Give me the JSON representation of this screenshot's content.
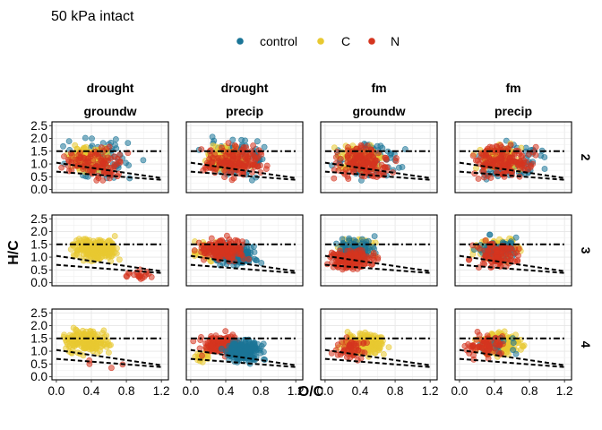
{
  "chart_data": {
    "type": "scatter",
    "title": "50 kPa intact",
    "xlabel": "O/C",
    "ylabel": "H/C",
    "xlim": [
      -0.05,
      1.28
    ],
    "ylim": [
      -0.12,
      2.65
    ],
    "xticks": [
      "0.0",
      "0.4",
      "0.8",
      "1.2"
    ],
    "xtick_values": [
      0,
      0.4,
      0.8,
      1.2
    ],
    "yticks": [
      "0.0",
      "0.5",
      "1.0",
      "1.5",
      "2.0",
      "2.5"
    ],
    "ytick_values": [
      0,
      0.5,
      1.0,
      1.5,
      2.0,
      2.5
    ],
    "grid": true,
    "legend_position": "top",
    "series": [
      {
        "name": "control",
        "color": "#1b7597"
      },
      {
        "name": "C",
        "color": "#e8c931"
      },
      {
        "name": "N",
        "color": "#d5351f"
      }
    ],
    "reference_lines": [
      {
        "style": "dash-dot",
        "x": [
          0,
          1.2
        ],
        "y": [
          1.5,
          1.5
        ]
      },
      {
        "style": "dashed",
        "x": [
          0,
          1.2
        ],
        "y": [
          1.05,
          0.45
        ]
      },
      {
        "style": "dashed",
        "x": [
          0,
          1.2
        ],
        "y": [
          0.7,
          0.38
        ]
      }
    ],
    "columns": [
      {
        "line1": "drought",
        "line2": "groundw"
      },
      {
        "line1": "drought",
        "line2": "precip"
      },
      {
        "line1": "fm",
        "line2": "groundw"
      },
      {
        "line1": "fm",
        "line2": "precip"
      }
    ],
    "rows": [
      "2",
      "3",
      "4"
    ],
    "panels": [
      {
        "row": 0,
        "col": 0,
        "clouds": [
          {
            "series": "control",
            "n": 90,
            "x": [
              0,
              1.2
            ],
            "y": [
              0,
              2.5
            ],
            "center": [
              0.5,
              1.2
            ],
            "spread": [
              0.55,
              1.1
            ]
          },
          {
            "series": "C",
            "n": 130,
            "x": [
              0,
              0.85
            ],
            "y": [
              0,
              2.2
            ],
            "center": [
              0.35,
              1.25
            ],
            "spread": [
              0.3,
              0.6
            ]
          },
          {
            "series": "N",
            "n": 110,
            "x": [
              0,
              1.2
            ],
            "y": [
              0,
              2.4
            ],
            "center": [
              0.45,
              1.0
            ],
            "spread": [
              0.45,
              0.9
            ]
          }
        ]
      },
      {
        "row": 0,
        "col": 1,
        "clouds": [
          {
            "series": "control",
            "n": 110,
            "x": [
              0,
              1.2
            ],
            "y": [
              0,
              2.5
            ],
            "center": [
              0.5,
              1.2
            ],
            "spread": [
              0.5,
              1.0
            ]
          },
          {
            "series": "C",
            "n": 110,
            "x": [
              0,
              0.9
            ],
            "y": [
              0,
              2.3
            ],
            "center": [
              0.4,
              1.2
            ],
            "spread": [
              0.35,
              0.7
            ]
          },
          {
            "series": "N",
            "n": 150,
            "x": [
              0,
              1.2
            ],
            "y": [
              0,
              2.4
            ],
            "center": [
              0.5,
              1.1
            ],
            "spread": [
              0.45,
              0.85
            ]
          }
        ]
      },
      {
        "row": 0,
        "col": 2,
        "clouds": [
          {
            "series": "control",
            "n": 100,
            "x": [
              0,
              1.2
            ],
            "y": [
              0,
              2.5
            ],
            "center": [
              0.5,
              1.2
            ],
            "spread": [
              0.5,
              1.0
            ]
          },
          {
            "series": "C",
            "n": 110,
            "x": [
              0,
              0.9
            ],
            "y": [
              0,
              2.3
            ],
            "center": [
              0.4,
              1.2
            ],
            "spread": [
              0.35,
              0.7
            ]
          },
          {
            "series": "N",
            "n": 150,
            "x": [
              0,
              1.2
            ],
            "y": [
              0,
              2.4
            ],
            "center": [
              0.45,
              1.05
            ],
            "spread": [
              0.45,
              0.85
            ]
          }
        ]
      },
      {
        "row": 0,
        "col": 3,
        "clouds": [
          {
            "series": "control",
            "n": 100,
            "x": [
              0,
              1.2
            ],
            "y": [
              0,
              2.5
            ],
            "center": [
              0.55,
              1.2
            ],
            "spread": [
              0.5,
              1.0
            ]
          },
          {
            "series": "C",
            "n": 120,
            "x": [
              0,
              0.95
            ],
            "y": [
              0,
              2.3
            ],
            "center": [
              0.45,
              1.2
            ],
            "spread": [
              0.35,
              0.7
            ]
          },
          {
            "series": "N",
            "n": 160,
            "x": [
              0,
              1.2
            ],
            "y": [
              0,
              2.4
            ],
            "center": [
              0.5,
              1.1
            ],
            "spread": [
              0.45,
              0.85
            ]
          }
        ]
      },
      {
        "row": 1,
        "col": 0,
        "clouds": [
          {
            "series": "C",
            "n": 220,
            "x": [
              0,
              1.2
            ],
            "y": [
              0,
              2.4
            ],
            "center": [
              0.45,
              1.3
            ],
            "spread": [
              0.35,
              0.65
            ]
          },
          {
            "series": "N",
            "n": 20,
            "x": [
              0.5,
              1.2
            ],
            "y": [
              0,
              0.8
            ],
            "center": [
              0.95,
              0.35
            ],
            "spread": [
              0.25,
              0.3
            ]
          }
        ]
      },
      {
        "row": 1,
        "col": 1,
        "clouds": [
          {
            "series": "C",
            "n": 35,
            "x": [
              0,
              0.8
            ],
            "y": [
              0,
              2.3
            ],
            "center": [
              0.2,
              1.3
            ],
            "spread": [
              0.25,
              0.7
            ]
          },
          {
            "series": "control",
            "n": 200,
            "x": [
              0,
              1.2
            ],
            "y": [
              0,
              2.4
            ],
            "center": [
              0.5,
              1.1
            ],
            "spread": [
              0.35,
              0.55
            ]
          },
          {
            "series": "N",
            "n": 160,
            "x": [
              0,
              1.2
            ],
            "y": [
              0,
              2.3
            ],
            "center": [
              0.35,
              1.3
            ],
            "spread": [
              0.35,
              0.6
            ]
          }
        ]
      },
      {
        "row": 1,
        "col": 2,
        "clouds": [
          {
            "series": "C",
            "n": 60,
            "x": [
              0,
              0.85
            ],
            "y": [
              0,
              2.4
            ],
            "center": [
              0.35,
              1.3
            ],
            "spread": [
              0.3,
              0.65
            ]
          },
          {
            "series": "control",
            "n": 90,
            "x": [
              0,
              0.9
            ],
            "y": [
              0,
              2.4
            ],
            "center": [
              0.35,
              1.3
            ],
            "spread": [
              0.3,
              0.65
            ]
          },
          {
            "series": "N",
            "n": 150,
            "x": [
              0,
              1.1
            ],
            "y": [
              0,
              2.0
            ],
            "center": [
              0.3,
              0.9
            ],
            "spread": [
              0.35,
              0.55
            ]
          }
        ]
      },
      {
        "row": 1,
        "col": 3,
        "clouds": [
          {
            "series": "C",
            "n": 150,
            "x": [
              0,
              1.0
            ],
            "y": [
              0,
              2.4
            ],
            "center": [
              0.45,
              1.3
            ],
            "spread": [
              0.35,
              0.6
            ]
          },
          {
            "series": "control",
            "n": 60,
            "x": [
              0,
              1.0
            ],
            "y": [
              0,
              2.4
            ],
            "center": [
              0.45,
              1.3
            ],
            "spread": [
              0.35,
              0.6
            ]
          },
          {
            "series": "N",
            "n": 100,
            "x": [
              0,
              1.2
            ],
            "y": [
              0,
              2.4
            ],
            "center": [
              0.45,
              1.1
            ],
            "spread": [
              0.4,
              0.7
            ]
          }
        ]
      },
      {
        "row": 2,
        "col": 0,
        "clouds": [
          {
            "series": "C",
            "n": 170,
            "x": [
              0,
              1.2
            ],
            "y": [
              0,
              2.4
            ],
            "center": [
              0.35,
              1.4
            ],
            "spread": [
              0.35,
              0.65
            ]
          },
          {
            "series": "N",
            "n": 4,
            "x": [
              0,
              1.2
            ],
            "y": [
              0,
              1.0
            ],
            "center": [
              0.5,
              0.5
            ],
            "spread": [
              0.4,
              0.3
            ]
          }
        ]
      },
      {
        "row": 2,
        "col": 1,
        "clouds": [
          {
            "series": "C",
            "n": 20,
            "x": [
              0,
              0.6
            ],
            "y": [
              0,
              1.6
            ],
            "center": [
              0.15,
              0.8
            ],
            "spread": [
              0.15,
              0.4
            ]
          },
          {
            "series": "N",
            "n": 130,
            "x": [
              0,
              1.2
            ],
            "y": [
              0,
              2.3
            ],
            "center": [
              0.35,
              1.25
            ],
            "spread": [
              0.35,
              0.6
            ]
          },
          {
            "series": "control",
            "n": 220,
            "x": [
              0.15,
              1.2
            ],
            "y": [
              0,
              2.4
            ],
            "center": [
              0.6,
              1.0
            ],
            "spread": [
              0.3,
              0.55
            ]
          }
        ]
      },
      {
        "row": 2,
        "col": 2,
        "clouds": [
          {
            "series": "C",
            "n": 190,
            "x": [
              0,
              1.0
            ],
            "y": [
              0,
              2.4
            ],
            "center": [
              0.45,
              1.3
            ],
            "spread": [
              0.35,
              0.6
            ]
          },
          {
            "series": "N",
            "n": 50,
            "x": [
              0,
              1.2
            ],
            "y": [
              0,
              2.0
            ],
            "center": [
              0.3,
              1.1
            ],
            "spread": [
              0.3,
              0.55
            ]
          }
        ]
      },
      {
        "row": 2,
        "col": 3,
        "clouds": [
          {
            "series": "C",
            "n": 200,
            "x": [
              0,
              1.1
            ],
            "y": [
              0,
              2.4
            ],
            "center": [
              0.45,
              1.3
            ],
            "spread": [
              0.35,
              0.6
            ]
          },
          {
            "series": "control",
            "n": 20,
            "x": [
              0,
              1.0
            ],
            "y": [
              0,
              2.2
            ],
            "center": [
              0.45,
              1.2
            ],
            "spread": [
              0.35,
              0.5
            ]
          },
          {
            "series": "N",
            "n": 70,
            "x": [
              0,
              1.2
            ],
            "y": [
              0,
              2.4
            ],
            "center": [
              0.3,
              1.2
            ],
            "spread": [
              0.35,
              0.65
            ]
          }
        ]
      }
    ]
  }
}
